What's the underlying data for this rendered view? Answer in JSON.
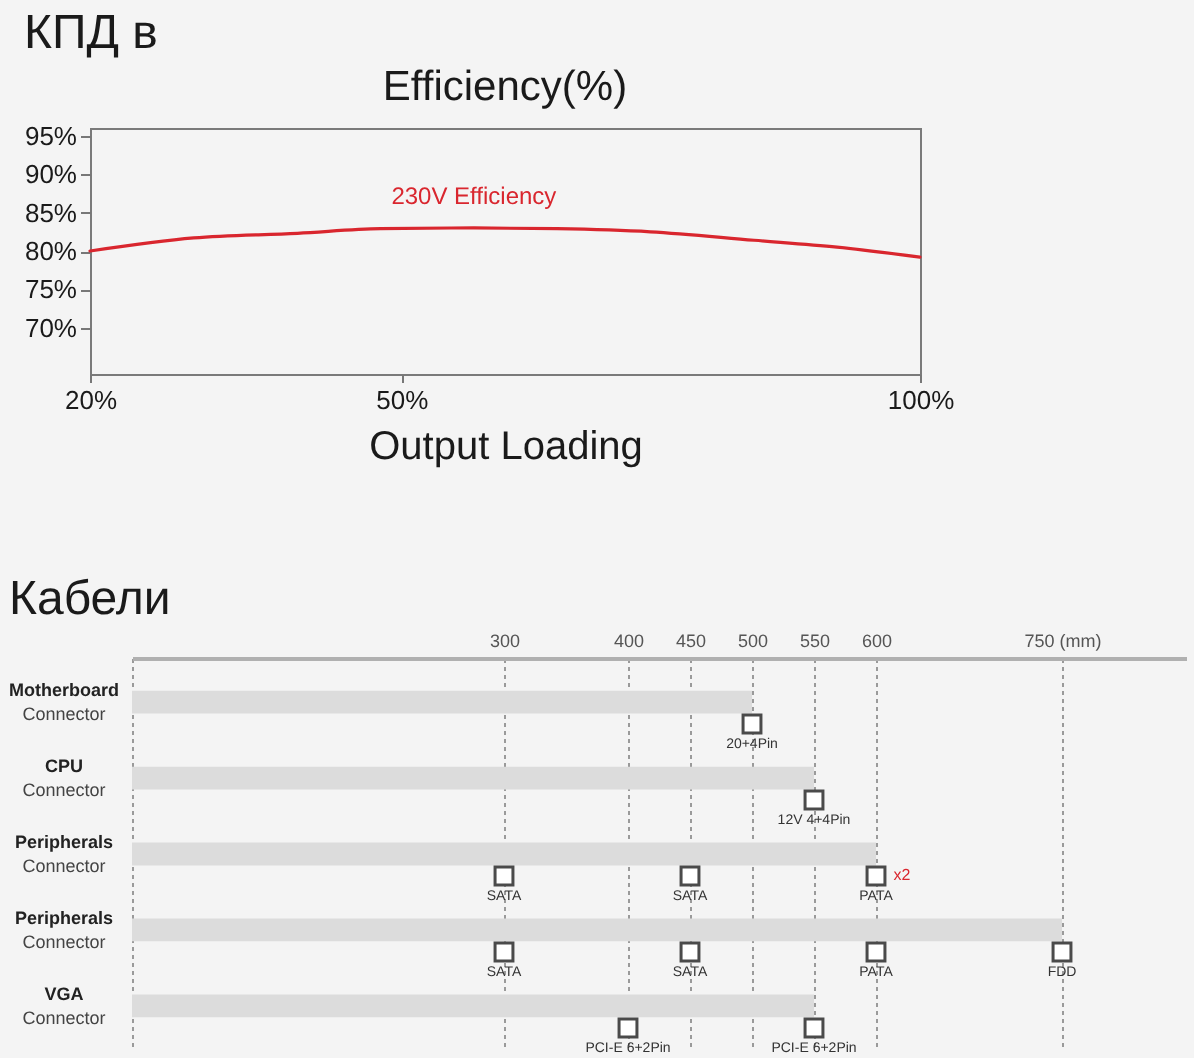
{
  "chart_data": [
    {
      "type": "line",
      "title": "КПД в",
      "subtitle": "Efficiency(%)",
      "xlabel": "Output Loading",
      "x": [
        20,
        30,
        40,
        48,
        57,
        65,
        74,
        84,
        92,
        100
      ],
      "series": [
        {
          "name": "230V Efficiency",
          "color": "#d9262e",
          "values": [
            80.0,
            81.7,
            82.3,
            82.9,
            83.0,
            82.9,
            82.5,
            81.4,
            80.5,
            79.2
          ]
        }
      ],
      "xlim": [
        20,
        100
      ],
      "ylim": [
        64,
        96
      ],
      "xticks": [
        {
          "value": 20,
          "label": "20%"
        },
        {
          "value": 50,
          "label": "50%"
        },
        {
          "value": 100,
          "label": "100%"
        }
      ],
      "yticks": [
        {
          "value": 70,
          "label": "70%"
        },
        {
          "value": 75,
          "label": "75%"
        },
        {
          "value": 80,
          "label": "80%"
        },
        {
          "value": 85,
          "label": "85%"
        },
        {
          "value": 90,
          "label": "90%"
        },
        {
          "value": 95,
          "label": "95%"
        }
      ]
    },
    {
      "type": "bar",
      "orientation": "horizontal",
      "title": "Кабели",
      "categories": [
        "Motherboard\nConnector",
        "CPU\nConnector",
        "Peripherals\nConnector",
        "Peripherals\nConnector",
        "VGA\nConnector"
      ],
      "series": [
        {
          "type": "bar",
          "color": "#dcdcdc",
          "values": [
            500,
            550,
            600,
            750,
            550
          ]
        },
        {
          "type": "scatter",
          "color": "#4a4a4a",
          "values": [
            500,
            550,
            300,
            300,
            400
          ],
          "value_labels": [
            "20+4Pin",
            "12V 4+4Pin",
            "SATA",
            "SATA",
            "PCI-E 6+2Pin"
          ]
        },
        {
          "type": "scatter",
          "color": "#4a4a4a",
          "values": [
            null,
            null,
            450,
            450,
            550
          ],
          "value_labels": [
            null,
            null,
            "SATA",
            "SATA",
            "PCI-E 6+2Pin"
          ]
        },
        {
          "type": "scatter",
          "color": "#4a4a4a",
          "values": [
            null,
            null,
            600,
            600,
            null
          ],
          "value_labels": [
            null,
            null,
            "PATA",
            "PATA",
            null
          ]
        },
        {
          "type": "scatter",
          "color": "#4a4a4a",
          "values": [
            null,
            null,
            null,
            750,
            null
          ],
          "value_labels": [
            null,
            null,
            null,
            "FDD",
            null
          ]
        }
      ],
      "xlim": [
        0,
        850
      ],
      "xticks": [
        {
          "value": 0,
          "label": null
        },
        300,
        400,
        450,
        500,
        550,
        600,
        {
          "value": 750,
          "label": "750 (mm)"
        }
      ],
      "grid": "x",
      "marker": "square",
      "annotations": [
        {
          "text": "x2",
          "x": 600,
          "y": "Peripherals\nConnector"
        }
      ]
    }
  ]
}
